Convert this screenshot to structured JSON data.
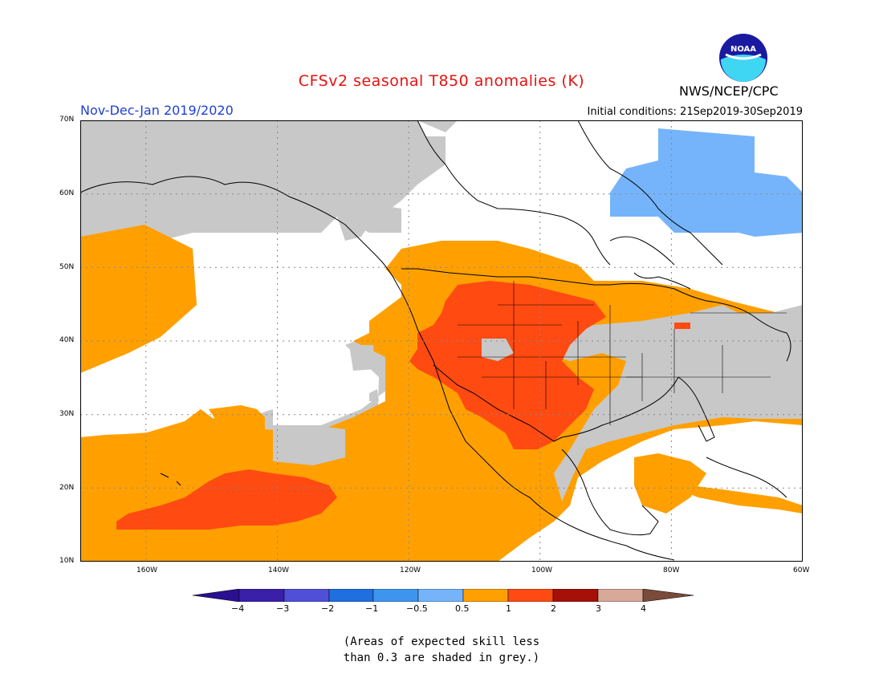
{
  "header": {
    "title": "CFSv2 seasonal T850 anomalies (K)",
    "season": "Nov-Dec-Jan 2019/2020",
    "initial_conditions": "Initial conditions: 21Sep2019-30Sep2019",
    "agency": "NWS/NCEP/CPC",
    "logo_text": "NOAA"
  },
  "map": {
    "lat_labels": [
      "70N",
      "60N",
      "50N",
      "40N",
      "30N",
      "20N",
      "10N"
    ],
    "lon_labels": [
      "160W",
      "140W",
      "120W",
      "100W",
      "80W",
      "60W"
    ],
    "extent": {
      "lon_min": -170,
      "lon_max": -60,
      "lat_min": 10,
      "lat_max": 70
    },
    "grid": "dotted",
    "colors": {
      "grey_low_skill": "#c8c8c8",
      "neutral": "#ffffff",
      "warm_0_5_1": "#ffa000",
      "warm_1_2": "#ff4a12",
      "cool_neg1_neg0_5": "#75b4fa"
    }
  },
  "colorbar": {
    "labels": [
      "−4",
      "−3",
      "−2",
      "−1",
      "−0.5",
      "0.5",
      "1",
      "2",
      "3",
      "4"
    ],
    "colors": [
      "#3a1fa8",
      "#4f4fd8",
      "#1f6fe0",
      "#3d95ef",
      "#75b4fa",
      "#ffffff",
      "#ffa000",
      "#ff4a12",
      "#a51008",
      "#d8a898"
    ],
    "end_low": "#2a0f90",
    "end_high": "#7a4a3a"
  },
  "footnote": {
    "line1": "(Areas of expected skill less",
    "line2": "than 0.3 are shaded in grey.)"
  }
}
